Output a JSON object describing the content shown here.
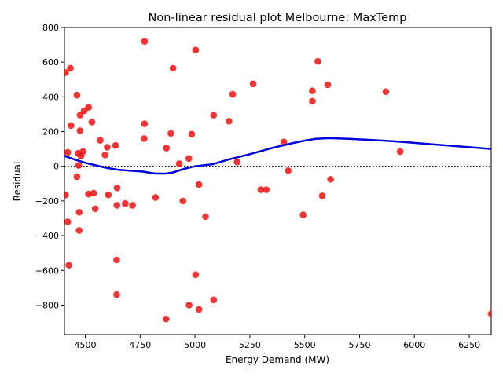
{
  "chart_data": {
    "type": "scatter",
    "title": "Non-linear residual plot Melbourne: MaxTemp",
    "xlabel": "Energy Demand (MW)",
    "ylabel": "Residual",
    "xlim": [
      4405,
      6350
    ],
    "ylim": [
      -970,
      800
    ],
    "xticks": [
      4500,
      4750,
      5000,
      5250,
      5500,
      5750,
      6000,
      6250
    ],
    "yticks": [
      -800,
      -600,
      -400,
      -200,
      0,
      200,
      400,
      600,
      800
    ],
    "grid": false,
    "zero_line": {
      "y": 0,
      "color": "#000000",
      "style": "dotted"
    },
    "series": [
      {
        "kind": "scatter",
        "color": "#ee1111",
        "points": [
          [
            4410,
            540
          ],
          [
            4432,
            565
          ],
          [
            4420,
            80
          ],
          [
            4435,
            235
          ],
          [
            4462,
            410
          ],
          [
            4468,
            75
          ],
          [
            4476,
            295
          ],
          [
            4476,
            205
          ],
          [
            4480,
            60
          ],
          [
            4490,
            85
          ],
          [
            4495,
            320
          ],
          [
            4515,
            340
          ],
          [
            4530,
            255
          ],
          [
            4470,
            5
          ],
          [
            4462,
            -60
          ],
          [
            4410,
            -165
          ],
          [
            4420,
            -320
          ],
          [
            4472,
            -265
          ],
          [
            4472,
            -370
          ],
          [
            4425,
            -570
          ],
          [
            4515,
            -160
          ],
          [
            4538,
            -155
          ],
          [
            4545,
            -245
          ],
          [
            4568,
            150
          ],
          [
            4590,
            65
          ],
          [
            4600,
            110
          ],
          [
            4605,
            -165
          ],
          [
            4638,
            120
          ],
          [
            4645,
            -125
          ],
          [
            4644,
            -225
          ],
          [
            4643,
            -540
          ],
          [
            4643,
            -740
          ],
          [
            4682,
            -215
          ],
          [
            4715,
            -225
          ],
          [
            4770,
            720
          ],
          [
            4770,
            245
          ],
          [
            4768,
            160
          ],
          [
            4820,
            -180
          ],
          [
            4870,
            105
          ],
          [
            4890,
            190
          ],
          [
            4900,
            565
          ],
          [
            4868,
            -880
          ],
          [
            4928,
            15
          ],
          [
            4945,
            -200
          ],
          [
            4972,
            45
          ],
          [
            4973,
            -800
          ],
          [
            4985,
            185
          ],
          [
            5003,
            670
          ],
          [
            5003,
            -625
          ],
          [
            5018,
            -105
          ],
          [
            5018,
            -825
          ],
          [
            5048,
            -290
          ],
          [
            5085,
            295
          ],
          [
            5085,
            -770
          ],
          [
            5155,
            260
          ],
          [
            5172,
            415
          ],
          [
            5192,
            25
          ],
          [
            5265,
            475
          ],
          [
            5300,
            -135
          ],
          [
            5325,
            -135
          ],
          [
            5405,
            140
          ],
          [
            5425,
            -25
          ],
          [
            5493,
            -280
          ],
          [
            5535,
            435
          ],
          [
            5535,
            375
          ],
          [
            5560,
            605
          ],
          [
            5580,
            -170
          ],
          [
            5605,
            470
          ],
          [
            5618,
            -75
          ],
          [
            5870,
            430
          ],
          [
            5935,
            85
          ],
          [
            6350,
            -850
          ]
        ]
      },
      {
        "kind": "line",
        "color": "#0000dd",
        "points": [
          [
            4405,
            60
          ],
          [
            4450,
            40
          ],
          [
            4500,
            20
          ],
          [
            4550,
            5
          ],
          [
            4600,
            -10
          ],
          [
            4650,
            -20
          ],
          [
            4700,
            -25
          ],
          [
            4760,
            -30
          ],
          [
            4820,
            -42
          ],
          [
            4870,
            -42
          ],
          [
            4900,
            -35
          ],
          [
            4950,
            -15
          ],
          [
            5000,
            0
          ],
          [
            5080,
            12
          ],
          [
            5150,
            38
          ],
          [
            5250,
            70
          ],
          [
            5350,
            105
          ],
          [
            5450,
            135
          ],
          [
            5500,
            148
          ],
          [
            5550,
            158
          ],
          [
            5610,
            162
          ],
          [
            5700,
            158
          ],
          [
            5800,
            152
          ],
          [
            5900,
            145
          ],
          [
            6000,
            135
          ],
          [
            6100,
            125
          ],
          [
            6200,
            115
          ],
          [
            6350,
            100
          ]
        ]
      }
    ]
  }
}
